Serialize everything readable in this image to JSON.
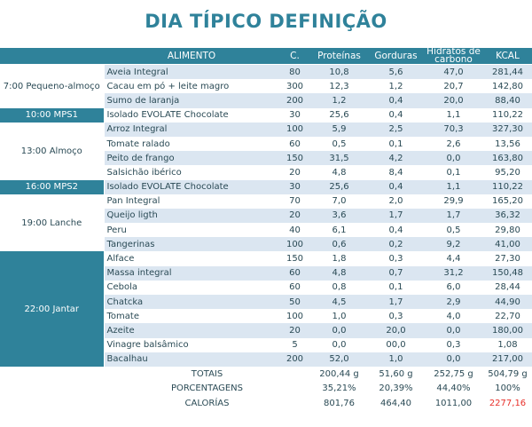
{
  "title": "DIA TÍPICO DEFINIÇÃO",
  "colors": {
    "accent": "#2f829a",
    "stripe": "#dbe6f1",
    "highlight": "#e8302a"
  },
  "headers": [
    "",
    "ALIMENTO",
    "C.",
    "Proteínas",
    "Gorduras",
    "Hidratos de carbono",
    "KCAL"
  ],
  "meals": [
    {
      "label": "7:00 Pequeno-almoço",
      "highlighted": false,
      "items": [
        [
          "Aveia Integral",
          "80",
          "10,8",
          "5,6",
          "47,0",
          "281,44"
        ],
        [
          "Cacau em pó + leite magro",
          "300",
          "12,3",
          "1,2",
          "20,7",
          "142,80"
        ],
        [
          "Sumo de laranja",
          "200",
          "1,2",
          "0,4",
          "20,0",
          "88,40"
        ]
      ]
    },
    {
      "label": "10:00 MPS1",
      "highlighted": true,
      "items": [
        [
          "Isolado EVOLATE Chocolate",
          "30",
          "25,6",
          "0,4",
          "1,1",
          "110,22"
        ]
      ]
    },
    {
      "label": "13:00 Almoço",
      "highlighted": false,
      "items": [
        [
          "Arroz Integral",
          "100",
          "5,9",
          "2,5",
          "70,3",
          "327,30"
        ],
        [
          "Tomate ralado",
          "60",
          "0,5",
          "0,1",
          "2,6",
          "13,56"
        ],
        [
          "Peito de frango",
          "150",
          "31,5",
          "4,2",
          "0,0",
          "163,80"
        ],
        [
          "Salsichão ibérico",
          "20",
          "4,8",
          "8,4",
          "0,1",
          "95,20"
        ]
      ]
    },
    {
      "label": "16:00 MPS2",
      "highlighted": true,
      "items": [
        [
          "Isolado EVOLATE Chocolate",
          "30",
          "25,6",
          "0,4",
          "1,1",
          "110,22"
        ]
      ]
    },
    {
      "label": "19:00 Lanche",
      "highlighted": false,
      "items": [
        [
          "Pan Integral",
          "70",
          "7,0",
          "2,0",
          "29,9",
          "165,20"
        ],
        [
          "Queijo ligth",
          "20",
          "3,6",
          "1,7",
          "1,7",
          "36,32"
        ],
        [
          "Peru",
          "40",
          "6,1",
          "0,4",
          "0,5",
          "29,80"
        ],
        [
          "Tangerinas",
          "100",
          "0,6",
          "0,2",
          "9,2",
          "41,00"
        ]
      ]
    },
    {
      "label": "22:00 Jantar",
      "highlighted": true,
      "items": [
        [
          "Alface",
          "150",
          "1,8",
          "0,3",
          "4,4",
          "27,30"
        ],
        [
          "Massa integral",
          "60",
          "4,8",
          "0,7",
          "31,2",
          "150,48"
        ],
        [
          "Cebola",
          "60",
          "0,8",
          "0,1",
          "6,0",
          "28,44"
        ],
        [
          "Chatcka",
          "50",
          "4,5",
          "1,7",
          "2,9",
          "44,90"
        ],
        [
          "Tomate",
          "100",
          "1,0",
          "0,3",
          "4,0",
          "22,70"
        ],
        [
          "Azeite",
          "20",
          "0,0",
          "20,0",
          "0,0",
          "180,00"
        ],
        [
          "Vinagre balsâmico",
          "5",
          "0,0",
          "00,0",
          "0,3",
          "1,08"
        ],
        [
          "Bacalhau",
          "200",
          "52,0",
          "1,0",
          "0,0",
          "217,00"
        ]
      ]
    }
  ],
  "summary": [
    {
      "label": "TOTAIS",
      "values": [
        "200,44 g",
        "51,60 g",
        "252,75 g",
        "504,79 g"
      ]
    },
    {
      "label": "PORCENTAGENS",
      "values": [
        "35,21%",
        "20,39%",
        "44,40%",
        "100%"
      ]
    },
    {
      "label": "CALORÍAS",
      "values": [
        "801,76",
        "464,40",
        "1011,00",
        "2277,16"
      ]
    }
  ]
}
